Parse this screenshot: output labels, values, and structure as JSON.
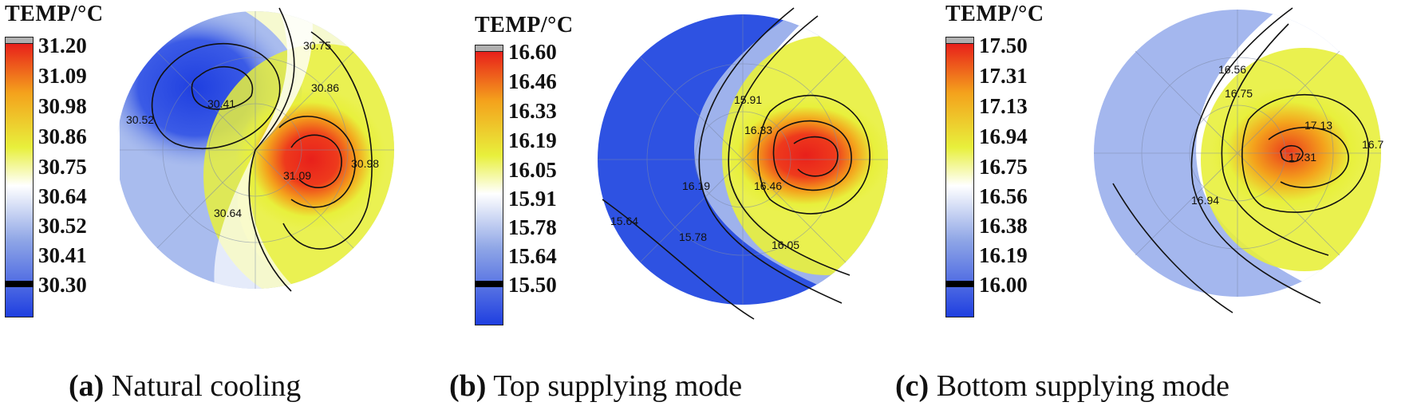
{
  "chart_data": [
    {
      "type": "heatmap",
      "legend_title": "TEMP/°C",
      "colorbar_ticks": [
        "31.20",
        "31.09",
        "30.98",
        "30.86",
        "30.75",
        "30.64",
        "30.52",
        "30.41",
        "30.30"
      ],
      "range": [
        30.3,
        31.2
      ],
      "contour_labels": [
        "30.75",
        "30.86",
        "30.41",
        "30.52",
        "31.09",
        "30.98",
        "30.64"
      ],
      "caption_letter": "(a)",
      "caption_text": " Natural cooling"
    },
    {
      "type": "heatmap",
      "legend_title": "TEMP/°C",
      "colorbar_ticks": [
        "16.60",
        "16.46",
        "16.33",
        "16.19",
        "16.05",
        "15.91",
        "15.78",
        "15.64",
        "15.50"
      ],
      "range": [
        15.5,
        16.6
      ],
      "contour_labels": [
        "15.91",
        "16.33",
        "16.19",
        "16.46",
        "15.64",
        "15.78",
        "16.05"
      ],
      "caption_letter": "(b)",
      "caption_text": " Top supplying mode"
    },
    {
      "type": "heatmap",
      "legend_title": "TEMP/°C",
      "colorbar_ticks": [
        "17.50",
        "17.31",
        "17.13",
        "16.94",
        "16.75",
        "16.56",
        "16.38",
        "16.19",
        "16.00"
      ],
      "range": [
        16.0,
        17.5
      ],
      "contour_labels": [
        "16.56",
        "16.75",
        "17.13",
        "17.31",
        "16.94",
        "16.7"
      ],
      "caption_letter": "(c)",
      "caption_text": " Bottom supplying mode"
    }
  ],
  "colors": {
    "hot": "#e8201b",
    "warm": "#f4a21c",
    "yellow": "#e8f03c",
    "neutral": "#ffffff",
    "cool": "#8fa6e6",
    "cold": "#1f3fe0"
  }
}
